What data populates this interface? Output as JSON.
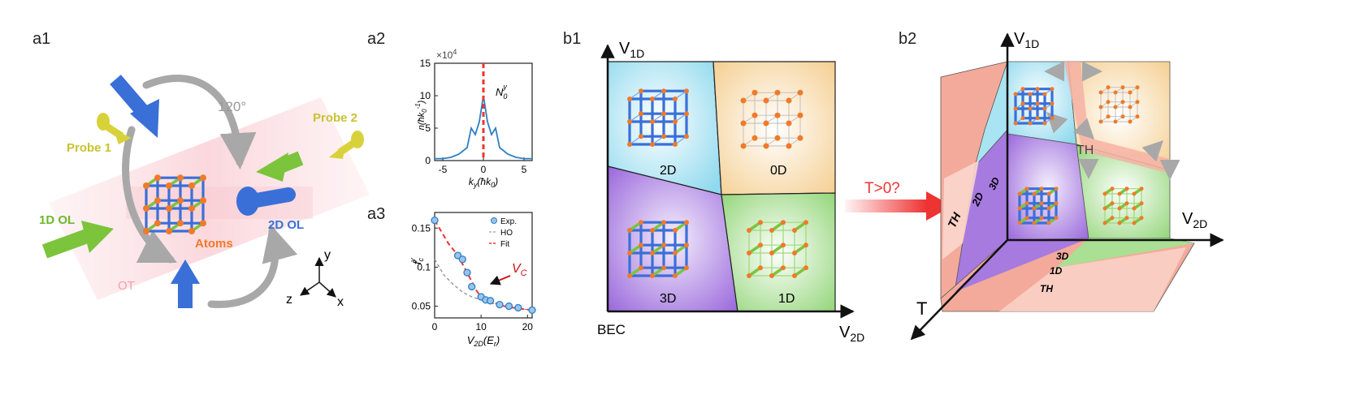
{
  "panel_labels": {
    "a1": "a1",
    "a2": "a2",
    "a3": "a3",
    "b1": "b1",
    "b2": "b2"
  },
  "a1": {
    "probe1": "Probe 1",
    "probe2": "Probe 2",
    "angle": "120°",
    "ol1d": "1D OL",
    "ol2d": "2D OL",
    "atoms": "Atoms",
    "ot": "OT",
    "axis_x": "x",
    "axis_y": "y",
    "axis_z": "z"
  },
  "a2": {
    "multiplier": "×10",
    "multiplier_exp": "4",
    "peak_label": "N",
    "peak_sub": "0",
    "peak_sup": "y",
    "ylabel": "n(ħk",
    "ylabel_tail": ")",
    "xlabel": "k",
    "xlabel_tail": "(ħk",
    "xlabel_end": ")",
    "xticks": [
      "-5",
      "0",
      "5"
    ],
    "yticks": [
      "0",
      "5",
      "10",
      "15"
    ]
  },
  "a3": {
    "ylabel": "f",
    "xlabel": "V",
    "xlabel_sub": "2D",
    "xlabel_unit": "(E",
    "xlabel_unit_end": ")",
    "legend": [
      "Exp.",
      "HO",
      "Fit"
    ],
    "annotation": "V",
    "annotation_sub": "C",
    "xticks": [
      "0",
      "10",
      "20"
    ],
    "yticks": [
      "0.05",
      "0.1",
      "0.15"
    ]
  },
  "b1": {
    "axis_y": "V",
    "axis_y_sub": "1D",
    "axis_x": "V",
    "axis_x_sub": "2D",
    "origin": "BEC",
    "regions": [
      "2D",
      "0D",
      "3D",
      "1D"
    ]
  },
  "arrow_label": "T>0?",
  "b2": {
    "axis_y": "V",
    "axis_y_sub": "1D",
    "axis_x": "V",
    "axis_x_sub": "2D",
    "axis_t": "T",
    "th_label": "TH",
    "left_labels": [
      "TH",
      "2D",
      "3D"
    ],
    "bottom_labels": [
      "3D",
      "1D",
      "TH"
    ]
  },
  "colors": {
    "blue": "#3a6fd8",
    "green": "#7cc43c",
    "orange": "#f07a2a",
    "yellow": "#d8d23a",
    "red": "#ee3333",
    "gray": "#a8a8a8",
    "cyan_region": "#a8e4f2",
    "orange_region": "#f7d9a6",
    "purple_region": "#a77ae0",
    "green_region": "#a9e094",
    "salmon_region": "#f4aa9a"
  },
  "chart_data": [
    {
      "type": "line",
      "panel": "a2",
      "x": [
        -6,
        -5,
        -4,
        -3,
        -2,
        -1.5,
        -1,
        -0.5,
        0,
        0.5,
        1,
        1.5,
        2,
        3,
        4,
        5,
        6
      ],
      "series": [
        {
          "values": [
            0.3,
            0.3,
            0.5,
            1.0,
            2.0,
            5.0,
            4.0,
            6.0,
            10.0,
            6.0,
            4.0,
            5.0,
            2.0,
            1.0,
            0.5,
            0.3,
            0.3
          ]
        }
      ],
      "xlim": [
        -6,
        6
      ],
      "ylim": [
        0,
        15
      ],
      "marker_x": 0
    },
    {
      "type": "scatter",
      "panel": "a3",
      "series": [
        {
          "name": "Exp.",
          "x": [
            0,
            5,
            6,
            7,
            8,
            10,
            11,
            12,
            14,
            16,
            18,
            21
          ],
          "values": [
            0.16,
            0.115,
            0.11,
            0.093,
            0.075,
            0.062,
            0.058,
            0.057,
            0.052,
            0.05,
            0.048,
            0.045
          ]
        },
        {
          "name": "HO",
          "x": [
            0,
            2,
            4,
            6,
            8,
            10,
            12,
            15,
            18,
            21
          ],
          "values": [
            0.11,
            0.09,
            0.078,
            0.068,
            0.062,
            0.058,
            0.054,
            0.05,
            0.047,
            0.045
          ]
        },
        {
          "name": "Fit",
          "x": [
            0,
            3,
            5,
            7,
            9,
            10,
            12,
            15,
            18,
            21
          ],
          "values": [
            0.16,
            0.13,
            0.115,
            0.093,
            0.07,
            0.062,
            0.056,
            0.05,
            0.047,
            0.045
          ]
        }
      ],
      "xlim": [
        0,
        21
      ],
      "ylim": [
        0.035,
        0.17
      ]
    }
  ]
}
